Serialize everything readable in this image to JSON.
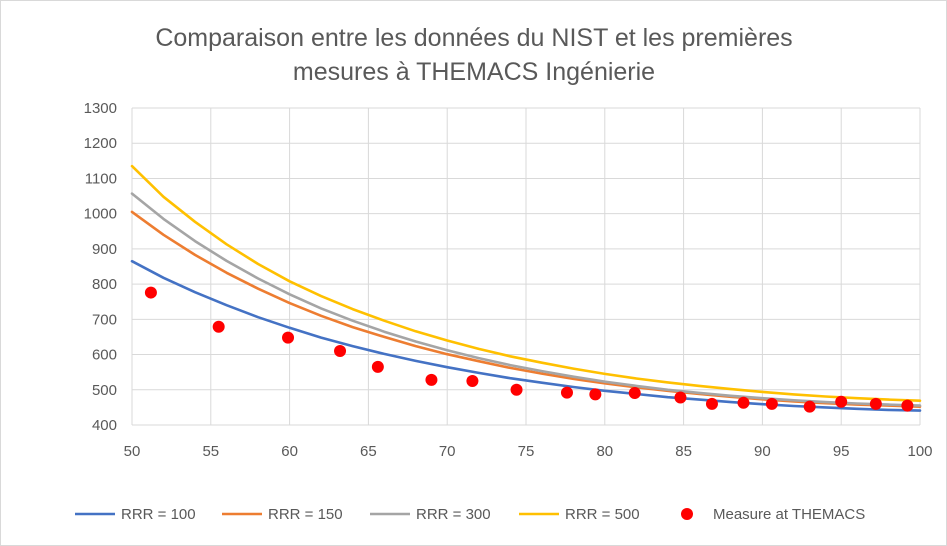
{
  "chart_data": {
    "type": "line",
    "title_lines": [
      "Comparaison entre les données du NIST et les premières",
      "mesures à THEMACS Ingénierie"
    ],
    "xlabel": "",
    "ylabel": "",
    "xlim": [
      50,
      100
    ],
    "ylim": [
      400,
      1300
    ],
    "x_ticks": [
      "50",
      "55",
      "60",
      "65",
      "70",
      "75",
      "80",
      "85",
      "90",
      "95",
      "100"
    ],
    "y_ticks": [
      "400",
      "500",
      "600",
      "700",
      "800",
      "900",
      "1000",
      "1100",
      "1200",
      "1300"
    ],
    "x_tick_values": [
      50,
      55,
      60,
      65,
      70,
      75,
      80,
      85,
      90,
      95,
      100
    ],
    "y_tick_values": [
      400,
      500,
      600,
      700,
      800,
      900,
      1000,
      1100,
      1200,
      1300
    ],
    "grid": true,
    "legend_position": "bottom",
    "series": [
      {
        "name": "RRR = 100",
        "kind": "line",
        "color": "#4472c4",
        "x": [
          50,
          52,
          54,
          56,
          58,
          60,
          62,
          64,
          66,
          68,
          70,
          72,
          74,
          76,
          78,
          80,
          82,
          84,
          86,
          88,
          90,
          92,
          94,
          96,
          98,
          100
        ],
        "y": [
          865,
          818,
          777,
          740,
          706,
          676,
          648,
          624,
          602,
          582,
          564,
          548,
          533,
          520,
          508,
          497,
          488,
          479,
          472,
          465,
          459,
          454,
          450,
          446,
          443,
          441
        ]
      },
      {
        "name": "RRR = 150",
        "kind": "line",
        "color": "#ed7d31",
        "x": [
          50,
          52,
          54,
          56,
          58,
          60,
          62,
          64,
          66,
          68,
          70,
          72,
          74,
          76,
          78,
          80,
          82,
          84,
          86,
          88,
          90,
          92,
          94,
          96,
          98,
          100
        ],
        "y": [
          1005,
          940,
          883,
          832,
          787,
          746,
          710,
          678,
          650,
          624,
          601,
          581,
          562,
          546,
          531,
          518,
          507,
          497,
          488,
          480,
          473,
          467,
          462,
          458,
          455,
          452
        ]
      },
      {
        "name": "RRR = 300",
        "kind": "line",
        "color": "#a5a5a5",
        "x": [
          50,
          52,
          54,
          56,
          58,
          60,
          62,
          64,
          66,
          68,
          70,
          72,
          74,
          76,
          78,
          80,
          82,
          84,
          86,
          88,
          90,
          92,
          94,
          96,
          98,
          100
        ],
        "y": [
          1057,
          985,
          922,
          866,
          816,
          771,
          731,
          696,
          665,
          637,
          612,
          590,
          570,
          553,
          537,
          523,
          511,
          500,
          491,
          483,
          476,
          470,
          465,
          461,
          458,
          455
        ]
      },
      {
        "name": "RRR = 500",
        "kind": "line",
        "color": "#ffc000",
        "x": [
          50,
          52,
          54,
          56,
          58,
          60,
          62,
          64,
          66,
          68,
          70,
          72,
          74,
          76,
          78,
          80,
          82,
          84,
          86,
          88,
          90,
          92,
          94,
          96,
          98,
          100
        ],
        "y": [
          1135,
          1048,
          977,
          913,
          857,
          808,
          766,
          729,
          696,
          666,
          640,
          616,
          595,
          577,
          560,
          545,
          532,
          521,
          511,
          502,
          494,
          487,
          481,
          476,
          472,
          469
        ]
      },
      {
        "name": "Measure at THEMACS",
        "kind": "scatter",
        "color": "#ff0000",
        "x": [
          51.2,
          55.5,
          59.9,
          63.2,
          65.6,
          69.0,
          71.6,
          74.4,
          77.6,
          79.4,
          81.9,
          84.8,
          86.8,
          88.8,
          90.6,
          93.0,
          95.0,
          97.2,
          99.2
        ],
        "y": [
          776,
          679,
          648,
          610,
          565,
          528,
          525,
          500,
          492,
          487,
          491,
          478,
          460,
          463,
          460,
          452,
          466,
          460,
          455
        ]
      }
    ]
  }
}
